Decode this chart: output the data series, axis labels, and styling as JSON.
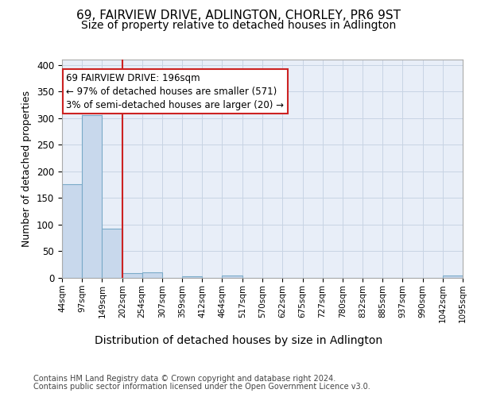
{
  "title1": "69, FAIRVIEW DRIVE, ADLINGTON, CHORLEY, PR6 9ST",
  "title2": "Size of property relative to detached houses in Adlington",
  "xlabel": "Distribution of detached houses by size in Adlington",
  "ylabel": "Number of detached properties",
  "footer1": "Contains HM Land Registry data © Crown copyright and database right 2024.",
  "footer2": "Contains public sector information licensed under the Open Government Licence v3.0.",
  "annotation_line1": "69 FAIRVIEW DRIVE: 196sqm",
  "annotation_line2": "← 97% of detached houses are smaller (571)",
  "annotation_line3": "3% of semi-detached houses are larger (20) →",
  "bar_color": "#c8d8ec",
  "bar_edge_color": "#7aaac8",
  "vline_color": "#cc2222",
  "vline_x": 202,
  "bin_edges": [
    44,
    97,
    149,
    202,
    254,
    307,
    359,
    412,
    464,
    517,
    570,
    622,
    675,
    727,
    780,
    832,
    885,
    937,
    990,
    1042,
    1095
  ],
  "bar_heights": [
    176,
    305,
    93,
    9,
    10,
    0,
    3,
    0,
    5,
    0,
    0,
    0,
    0,
    0,
    0,
    0,
    0,
    0,
    0,
    4
  ],
  "ylim": [
    0,
    410
  ],
  "yticks": [
    0,
    50,
    100,
    150,
    200,
    250,
    300,
    350,
    400
  ],
  "grid_color": "#c8d4e4",
  "bg_color": "#e8eef8",
  "title1_fontsize": 11,
  "title2_fontsize": 10,
  "xlabel_fontsize": 10,
  "ylabel_fontsize": 9,
  "footer_fontsize": 7
}
